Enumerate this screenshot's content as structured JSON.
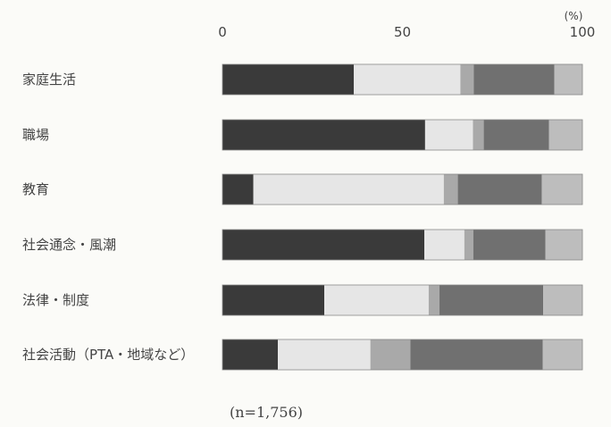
{
  "chart_data": {
    "type": "bar",
    "orientation": "horizontal",
    "stacked": true,
    "percent_stacked": true,
    "unit_label": "(%)",
    "xlim": [
      0,
      100
    ],
    "x_ticks": [
      0,
      50,
      100
    ],
    "categories": [
      "家庭生活",
      "職場",
      "教育",
      "社会通念・風潮",
      "法律・制度",
      "社会活動（PTA・地域など）"
    ],
    "series": [
      {
        "values": [
          36.5,
          56.3,
          8.6,
          56.1,
          28.3,
          15.4
        ],
        "color": "#3a3a3a"
      },
      {
        "values": [
          29.6,
          13.3,
          52.9,
          11.1,
          29.0,
          25.7
        ],
        "color": "#e6e6e6"
      },
      {
        "values": [
          3.7,
          3.0,
          3.9,
          2.5,
          3.0,
          11.1
        ],
        "color": "#a9a9a9"
      },
      {
        "values": [
          22.4,
          18.1,
          23.3,
          20.0,
          28.8,
          36.8
        ],
        "color": "#707070"
      },
      {
        "values": [
          7.8,
          9.3,
          11.3,
          10.3,
          10.9,
          11.0
        ],
        "color": "#bdbdbd"
      }
    ],
    "note": "(n=1,756)"
  }
}
